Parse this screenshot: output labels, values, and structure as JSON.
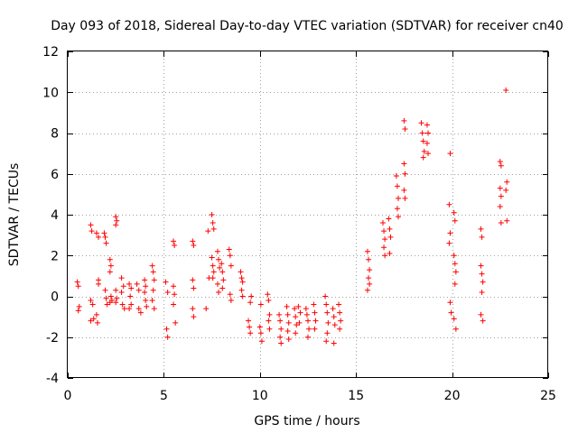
{
  "chart_data": {
    "type": "scatter",
    "title": "Day 093 of 2018, Sidereal Day-to-day VTEC variation (SDTVAR) for receiver cn40",
    "xlabel": "GPS time / hours",
    "ylabel": "SDTVAR / TECUs",
    "xlim": [
      0,
      25
    ],
    "ylim": [
      -4,
      12
    ],
    "xticks": [
      0,
      5,
      10,
      15,
      20,
      25
    ],
    "yticks": [
      -4,
      -2,
      0,
      2,
      4,
      6,
      8,
      10,
      12
    ],
    "xtick_labels": [
      "0",
      "5",
      "10",
      "15",
      "20",
      "25"
    ],
    "ytick_labels": [
      "-4",
      "-2",
      "0",
      "2",
      "4",
      "6",
      "8",
      "10",
      "12"
    ],
    "grid": true,
    "marker": "+",
    "color": "#ff0000",
    "series": [
      {
        "name": "SDTVAR",
        "points": [
          [
            0.5,
            0.7
          ],
          [
            0.55,
            0.5
          ],
          [
            0.6,
            -0.5
          ],
          [
            0.55,
            -0.7
          ],
          [
            1.2,
            3.5
          ],
          [
            1.25,
            3.2
          ],
          [
            1.2,
            -0.2
          ],
          [
            1.3,
            -0.4
          ],
          [
            1.2,
            -1.2
          ],
          [
            1.35,
            -1.1
          ],
          [
            1.5,
            3.1
          ],
          [
            1.6,
            2.9
          ],
          [
            1.6,
            0.8
          ],
          [
            1.6,
            0.6
          ],
          [
            1.5,
            -0.9
          ],
          [
            1.55,
            -1.3
          ],
          [
            1.9,
            3.1
          ],
          [
            1.95,
            2.9
          ],
          [
            2.0,
            2.6
          ],
          [
            1.95,
            0.3
          ],
          [
            2.0,
            -0.1
          ],
          [
            2.05,
            -0.4
          ],
          [
            2.2,
            1.8
          ],
          [
            2.25,
            1.5
          ],
          [
            2.2,
            1.2
          ],
          [
            2.25,
            0.0
          ],
          [
            2.3,
            -0.2
          ],
          [
            2.2,
            -0.3
          ],
          [
            2.5,
            3.9
          ],
          [
            2.55,
            3.7
          ],
          [
            2.5,
            3.5
          ],
          [
            2.5,
            0.3
          ],
          [
            2.55,
            -0.1
          ],
          [
            2.5,
            -0.3
          ],
          [
            2.8,
            0.9
          ],
          [
            2.9,
            0.5
          ],
          [
            2.8,
            0.2
          ],
          [
            2.85,
            -0.4
          ],
          [
            2.95,
            -0.6
          ],
          [
            3.2,
            0.6
          ],
          [
            3.3,
            0.4
          ],
          [
            3.25,
            0.0
          ],
          [
            3.3,
            -0.4
          ],
          [
            3.2,
            -0.6
          ],
          [
            3.6,
            0.6
          ],
          [
            3.7,
            0.3
          ],
          [
            3.7,
            -0.6
          ],
          [
            3.8,
            -0.8
          ],
          [
            4.0,
            0.8
          ],
          [
            4.05,
            0.5
          ],
          [
            4.0,
            0.2
          ],
          [
            4.05,
            -0.2
          ],
          [
            4.1,
            -0.5
          ],
          [
            4.4,
            1.5
          ],
          [
            4.45,
            1.2
          ],
          [
            4.5,
            0.8
          ],
          [
            4.45,
            0.3
          ],
          [
            4.4,
            -0.2
          ],
          [
            4.5,
            -0.6
          ],
          [
            5.1,
            0.7
          ],
          [
            5.2,
            0.2
          ],
          [
            5.15,
            -1.6
          ],
          [
            5.2,
            -2.0
          ],
          [
            5.5,
            2.7
          ],
          [
            5.55,
            2.5
          ],
          [
            5.5,
            0.5
          ],
          [
            5.55,
            0.1
          ],
          [
            5.5,
            -0.4
          ],
          [
            5.6,
            -1.3
          ],
          [
            6.5,
            2.7
          ],
          [
            6.55,
            2.5
          ],
          [
            6.5,
            0.8
          ],
          [
            6.55,
            0.4
          ],
          [
            6.5,
            -0.6
          ],
          [
            6.55,
            -1.0
          ],
          [
            7.2,
            -0.6
          ],
          [
            7.3,
            3.2
          ],
          [
            7.35,
            0.9
          ],
          [
            7.5,
            4.0
          ],
          [
            7.55,
            3.6
          ],
          [
            7.6,
            3.3
          ],
          [
            7.5,
            1.9
          ],
          [
            7.55,
            1.5
          ],
          [
            7.6,
            1.2
          ],
          [
            7.55,
            0.9
          ],
          [
            7.8,
            2.2
          ],
          [
            7.85,
            1.8
          ],
          [
            7.9,
            1.4
          ],
          [
            7.8,
            0.6
          ],
          [
            7.85,
            0.2
          ],
          [
            8.0,
            1.6
          ],
          [
            8.05,
            1.2
          ],
          [
            8.1,
            0.8
          ],
          [
            8.05,
            0.4
          ],
          [
            8.4,
            2.3
          ],
          [
            8.45,
            2.0
          ],
          [
            8.5,
            1.5
          ],
          [
            8.45,
            0.1
          ],
          [
            8.5,
            -0.2
          ],
          [
            9.0,
            1.2
          ],
          [
            9.05,
            0.9
          ],
          [
            9.1,
            0.7
          ],
          [
            9.05,
            0.3
          ],
          [
            9.1,
            0.0
          ],
          [
            9.4,
            -1.2
          ],
          [
            9.45,
            -1.5
          ],
          [
            9.5,
            -1.8
          ],
          [
            9.55,
            0.0
          ],
          [
            9.5,
            -0.3
          ],
          [
            10.0,
            -1.5
          ],
          [
            10.05,
            -1.8
          ],
          [
            10.1,
            -2.2
          ],
          [
            10.05,
            -0.4
          ],
          [
            10.4,
            0.1
          ],
          [
            10.45,
            -0.2
          ],
          [
            10.5,
            -0.9
          ],
          [
            10.45,
            -1.2
          ],
          [
            10.5,
            -1.6
          ],
          [
            11.0,
            -0.9
          ],
          [
            11.05,
            -1.2
          ],
          [
            11.1,
            -1.6
          ],
          [
            11.05,
            -2.0
          ],
          [
            11.1,
            -2.3
          ],
          [
            11.4,
            -0.5
          ],
          [
            11.45,
            -0.9
          ],
          [
            11.5,
            -1.3
          ],
          [
            11.45,
            -1.7
          ],
          [
            11.5,
            -2.1
          ],
          [
            11.8,
            -0.6
          ],
          [
            11.85,
            -1.0
          ],
          [
            11.9,
            -1.4
          ],
          [
            11.85,
            -1.8
          ],
          [
            12.0,
            -0.5
          ],
          [
            12.1,
            -0.8
          ],
          [
            12.05,
            -1.3
          ],
          [
            12.4,
            -0.6
          ],
          [
            12.45,
            -0.9
          ],
          [
            12.5,
            -1.2
          ],
          [
            12.55,
            -1.6
          ],
          [
            12.5,
            -2.0
          ],
          [
            12.8,
            -0.4
          ],
          [
            12.85,
            -0.8
          ],
          [
            12.9,
            -1.2
          ],
          [
            12.85,
            -1.6
          ],
          [
            13.4,
            0.0
          ],
          [
            13.45,
            -0.4
          ],
          [
            13.5,
            -0.8
          ],
          [
            13.55,
            -1.3
          ],
          [
            13.5,
            -1.8
          ],
          [
            13.45,
            -2.2
          ],
          [
            13.8,
            -0.6
          ],
          [
            13.85,
            -1.0
          ],
          [
            13.9,
            -1.4
          ],
          [
            13.85,
            -2.3
          ],
          [
            14.1,
            -0.4
          ],
          [
            14.15,
            -0.8
          ],
          [
            14.2,
            -1.2
          ],
          [
            14.15,
            -1.6
          ],
          [
            15.6,
            2.2
          ],
          [
            15.65,
            1.8
          ],
          [
            15.7,
            1.3
          ],
          [
            15.65,
            0.9
          ],
          [
            15.7,
            0.6
          ],
          [
            15.6,
            0.3
          ],
          [
            16.4,
            3.6
          ],
          [
            16.45,
            3.2
          ],
          [
            16.5,
            2.8
          ],
          [
            16.45,
            2.4
          ],
          [
            16.5,
            2.0
          ],
          [
            16.7,
            3.8
          ],
          [
            16.75,
            3.3
          ],
          [
            16.8,
            2.9
          ],
          [
            16.75,
            2.1
          ],
          [
            17.1,
            5.9
          ],
          [
            17.15,
            5.4
          ],
          [
            17.2,
            4.8
          ],
          [
            17.15,
            4.3
          ],
          [
            17.2,
            3.9
          ],
          [
            17.5,
            8.6
          ],
          [
            17.55,
            8.2
          ],
          [
            17.5,
            6.5
          ],
          [
            17.55,
            6.0
          ],
          [
            17.5,
            5.2
          ],
          [
            17.55,
            4.8
          ],
          [
            18.4,
            8.5
          ],
          [
            18.45,
            8.0
          ],
          [
            18.5,
            7.6
          ],
          [
            18.55,
            7.1
          ],
          [
            18.5,
            6.8
          ],
          [
            18.7,
            8.4
          ],
          [
            18.75,
            8.0
          ],
          [
            18.7,
            7.5
          ],
          [
            18.75,
            7.0
          ],
          [
            19.9,
            7.0
          ],
          [
            19.85,
            4.5
          ],
          [
            19.9,
            3.1
          ],
          [
            19.85,
            2.6
          ],
          [
            19.9,
            -0.3
          ],
          [
            19.95,
            -0.8
          ],
          [
            20.1,
            4.1
          ],
          [
            20.15,
            3.7
          ],
          [
            20.1,
            2.0
          ],
          [
            20.15,
            1.6
          ],
          [
            20.2,
            1.2
          ],
          [
            20.15,
            0.6
          ],
          [
            20.1,
            -1.1
          ],
          [
            20.2,
            -1.6
          ],
          [
            21.5,
            3.3
          ],
          [
            21.55,
            2.9
          ],
          [
            21.5,
            1.5
          ],
          [
            21.55,
            1.1
          ],
          [
            21.6,
            0.7
          ],
          [
            21.55,
            0.2
          ],
          [
            21.5,
            -0.9
          ],
          [
            21.6,
            -1.2
          ],
          [
            22.5,
            6.6
          ],
          [
            22.55,
            6.4
          ],
          [
            22.5,
            5.3
          ],
          [
            22.55,
            4.9
          ],
          [
            22.5,
            4.4
          ],
          [
            22.55,
            3.6
          ],
          [
            22.8,
            10.1
          ],
          [
            22.85,
            5.6
          ],
          [
            22.8,
            5.2
          ],
          [
            22.85,
            3.7
          ]
        ]
      }
    ]
  }
}
